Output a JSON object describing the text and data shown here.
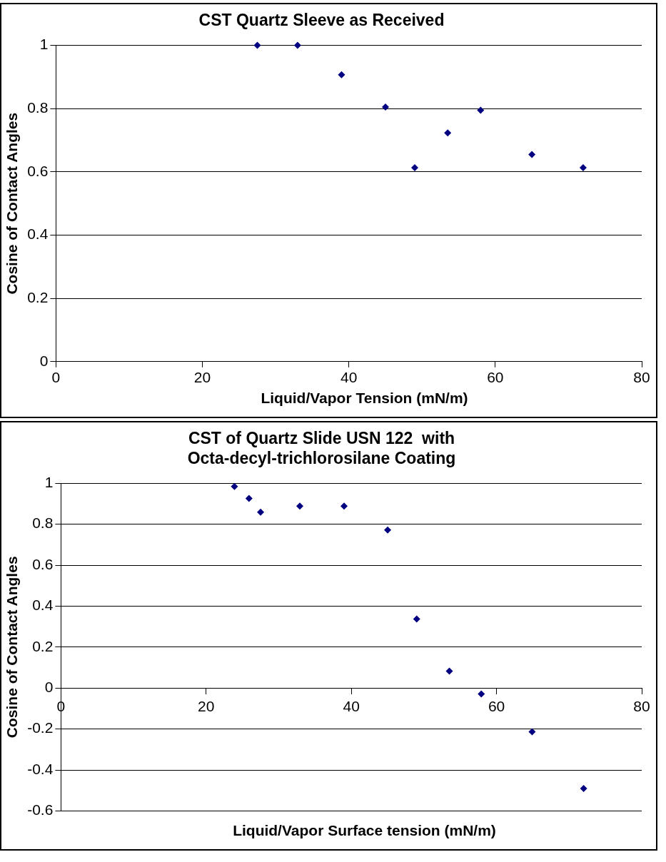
{
  "chart_data": [
    {
      "type": "scatter",
      "title": "CST Quartz Sleeve as Received",
      "xlabel": "Liquid/Vapor Tension (mN/m)",
      "ylabel": "Cosine of Contact Angles",
      "x": [
        27.5,
        33,
        39,
        45,
        49,
        53.5,
        58,
        65,
        72
      ],
      "values": [
        1.0,
        1.0,
        0.907,
        0.805,
        0.613,
        0.723,
        0.795,
        0.655,
        0.613
      ],
      "color": "#000080",
      "marker": "diamond",
      "xlim": [
        0,
        80
      ],
      "xticks": [
        0,
        20,
        40,
        60,
        80
      ],
      "ylim": [
        0,
        1
      ],
      "yticks": [
        0,
        0.2,
        0.4,
        0.6,
        0.8,
        1
      ],
      "grid": "y",
      "legend": false
    },
    {
      "type": "scatter",
      "title": "CST of Quartz Slide USN 122  with Octa-decyl-trichlorosilane Coating",
      "xlabel": "Liquid/Vapor Surface tension (mN/m)",
      "ylabel": "Cosine of Contact Angles",
      "x": [
        23.9,
        25.9,
        27.5,
        32.9,
        39,
        45,
        49,
        53.5,
        57.9,
        64.9,
        72
      ],
      "values": [
        0.984,
        0.926,
        0.859,
        0.888,
        0.888,
        0.772,
        0.337,
        0.083,
        -0.029,
        -0.214,
        -0.491
      ],
      "color": "#000080",
      "marker": "diamond",
      "xlim": [
        0,
        80
      ],
      "xticks": [
        0,
        20,
        40,
        60,
        80
      ],
      "ylim": [
        -0.6,
        1
      ],
      "yticks": [
        -0.6,
        -0.4,
        -0.2,
        0,
        0.2,
        0.4,
        0.6,
        0.8,
        1
      ],
      "grid": "y",
      "legend": false
    }
  ]
}
